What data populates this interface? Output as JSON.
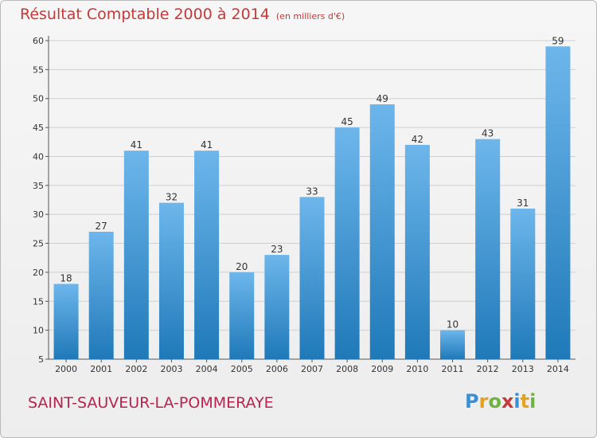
{
  "header": {
    "title": "Résultat Comptable 2000 à 2014",
    "subtitle": "(en milliers d'€)"
  },
  "footer": {
    "commune": "SAINT-SAUVEUR-LA-POMMERAYE",
    "logo": {
      "letters": [
        "P",
        "r",
        "o",
        "x",
        "i",
        "t",
        "i"
      ],
      "colors": [
        "#3b8fd4",
        "#e6a21c",
        "#6fb340",
        "#c23a3a",
        "#3b8fd4",
        "#e6a21c",
        "#6fb340"
      ]
    }
  },
  "colors": {
    "bar_light": "#6db6ec",
    "bar_dark": "#1f79b8",
    "title": "#c23a3a",
    "commune": "#b8244e",
    "grid": "#d0d0d0"
  },
  "chart_data": {
    "type": "bar",
    "categories": [
      "2000",
      "2001",
      "2002",
      "2003",
      "2004",
      "2005",
      "2006",
      "2007",
      "2008",
      "2009",
      "2010",
      "2011",
      "2012",
      "2013",
      "2014"
    ],
    "values": [
      18,
      27,
      41,
      32,
      41,
      20,
      23,
      33,
      45,
      49,
      42,
      10,
      43,
      31,
      59
    ],
    "title": "Résultat Comptable 2000 à 2014",
    "subtitle": "(en milliers d'€)",
    "xlabel": "",
    "ylabel": "",
    "ylim": [
      5,
      60
    ],
    "yticks": [
      5,
      10,
      15,
      20,
      25,
      30,
      35,
      40,
      45,
      50,
      55,
      60
    ],
    "grid": true,
    "data_labels": true
  }
}
